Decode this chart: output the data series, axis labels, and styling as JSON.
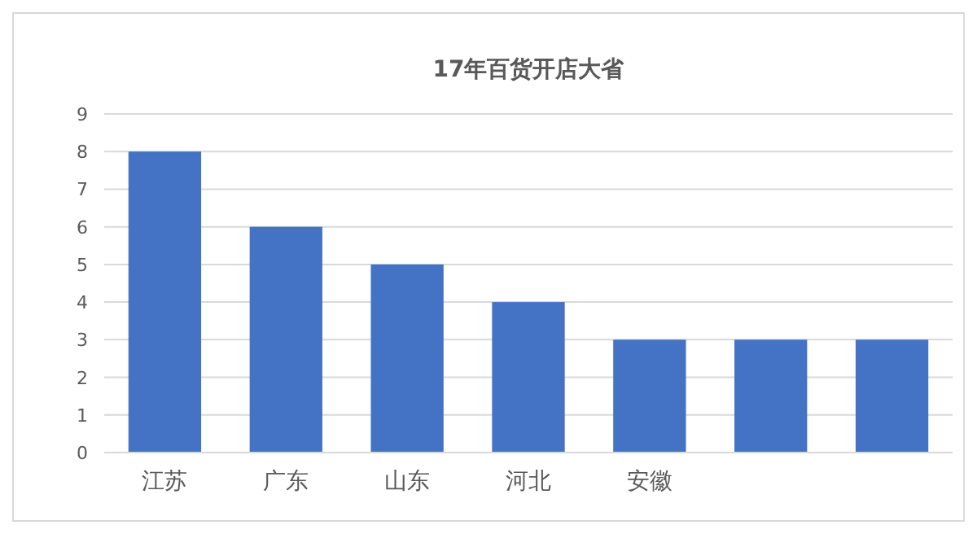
{
  "chart_data": {
    "type": "bar",
    "title": "17年百货开店大省",
    "categories": [
      "江苏",
      "广东",
      "山东",
      "河北",
      "安徽",
      null,
      null
    ],
    "values": [
      8,
      6,
      5,
      4,
      3,
      3,
      3
    ],
    "color": "#4472c4",
    "ylim": [
      0,
      9
    ],
    "yticks": [
      0,
      1,
      2,
      3,
      4,
      5,
      6,
      7,
      8,
      9
    ],
    "grid": "y"
  }
}
